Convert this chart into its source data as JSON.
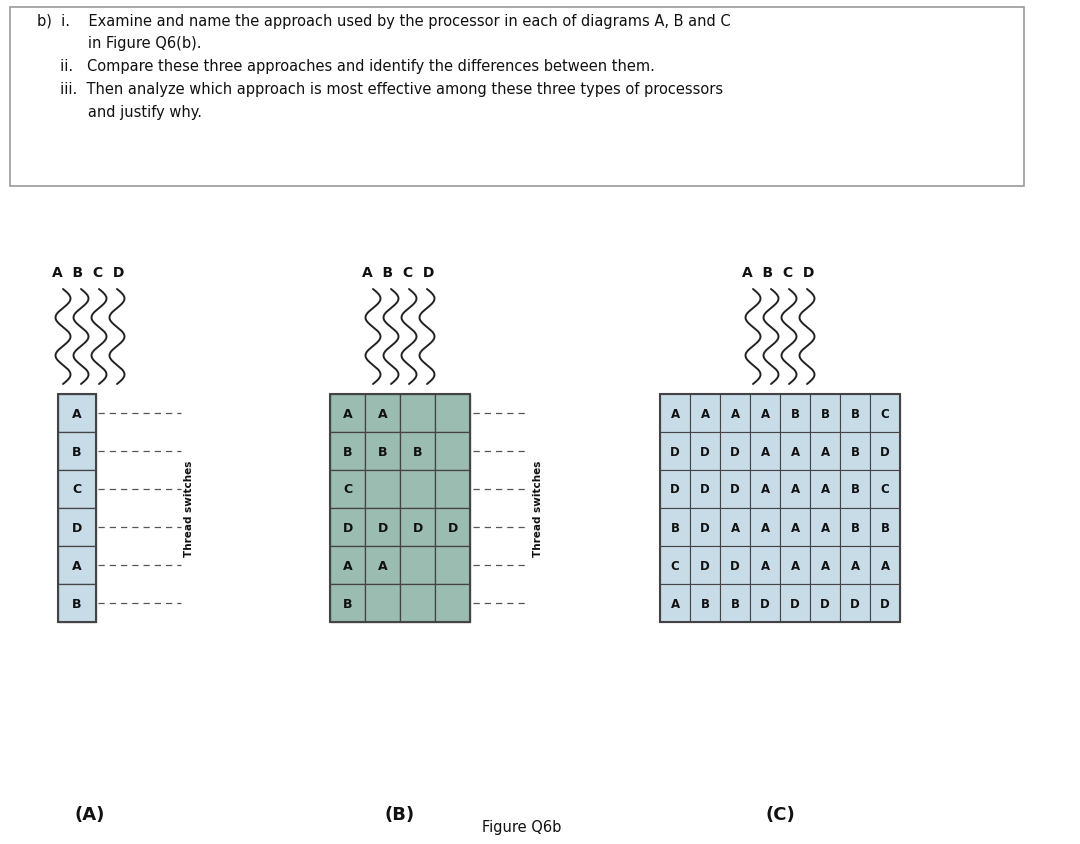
{
  "question_lines": [
    "b)  i.    Examine and name the approach used by the processor in each of diagrams A, B and C",
    "           in Figure Q6(b).",
    "     ii.   Compare these three approaches and identify the differences between them.",
    "     iii.  Then analyze which approach is most effective among these three types of processors",
    "           and justify why."
  ],
  "fig_caption": "Figure Q6b",
  "diagram_A_grid": [
    "A",
    "B",
    "C",
    "D",
    "A",
    "B"
  ],
  "diagram_B_grid": [
    [
      "A",
      "A",
      "",
      ""
    ],
    [
      "B",
      "B",
      "B",
      ""
    ],
    [
      "C",
      "",
      "",
      ""
    ],
    [
      "D",
      "D",
      "D",
      "D"
    ],
    [
      "A",
      "A",
      "",
      ""
    ],
    [
      "B",
      "",
      "",
      ""
    ]
  ],
  "diagram_C_grid": [
    [
      "A",
      "A",
      "A",
      "A",
      "B",
      "B",
      "B",
      "C"
    ],
    [
      "D",
      "D",
      "D",
      "A",
      "A",
      "A",
      "B",
      "D"
    ],
    [
      "D",
      "D",
      "D",
      "A",
      "A",
      "A",
      "B",
      "C"
    ],
    [
      "B",
      "D",
      "A",
      "A",
      "A",
      "A",
      "B",
      "B"
    ],
    [
      "C",
      "D",
      "D",
      "A",
      "A",
      "A",
      "A",
      "A"
    ],
    [
      "A",
      "B",
      "B",
      "D",
      "D",
      "D",
      "D",
      "D"
    ]
  ],
  "cell_bg_light": "#c8dce8",
  "cell_bg_B": "#9bbcb0",
  "cell_border": "#444444",
  "text_color": "#111111",
  "bg_white": "#ffffff",
  "bg_gray": "#f0f0f0",
  "bg_black": "#111111",
  "bg_right": "#888888",
  "thread_label": "Thread switches"
}
